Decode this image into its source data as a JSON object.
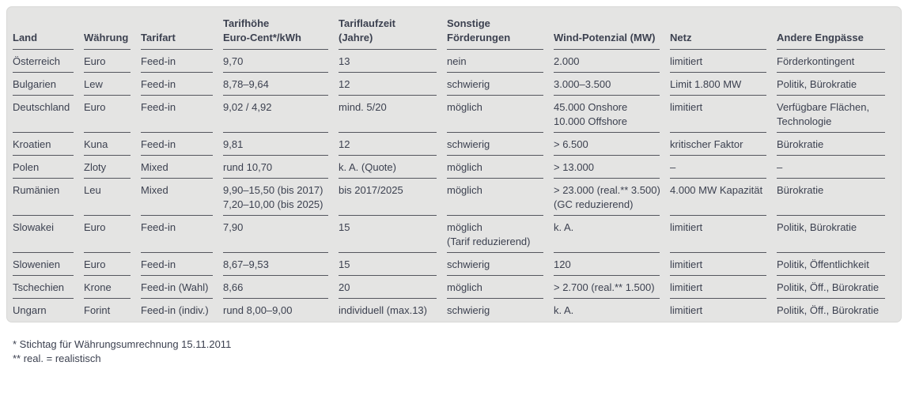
{
  "table": {
    "columns": [
      "Land",
      "Währung",
      "Tarifart",
      "Tarifhöhe\nEuro-Cent*/kWh",
      "Tariflaufzeit\n(Jahre)",
      "Sonstige\nFörderungen",
      "Wind-Potenzial (MW)",
      "Netz",
      "Andere Engpässe"
    ],
    "rows": [
      [
        "Österreich",
        "Euro",
        "Feed-in",
        "9,70",
        "13",
        "nein",
        "2.000",
        "limitiert",
        "Förderkontingent"
      ],
      [
        "Bulgarien",
        "Lew",
        "Feed-in",
        "8,78–9,64",
        "12",
        "schwierig",
        "3.000–3.500",
        "Limit 1.800 MW",
        "Politik, Bürokratie"
      ],
      [
        "Deutschland",
        "Euro",
        "Feed-in",
        "9,02 / 4,92",
        "mind. 5/20",
        "möglich",
        "45.000 Onshore\n10.000 Offshore",
        "limitiert",
        "Verfügbare Flächen,\nTechnologie"
      ],
      [
        "Kroatien",
        "Kuna",
        "Feed-in",
        "9,81",
        "12",
        "schwierig",
        "> 6.500",
        "kritischer Faktor",
        "Bürokratie"
      ],
      [
        "Polen",
        "Zloty",
        "Mixed",
        "rund 10,70",
        "k. A. (Quote)",
        "möglich",
        "> 13.000",
        "–",
        "–"
      ],
      [
        "Rumänien",
        "Leu",
        "Mixed",
        "9,90–15,50 (bis 2017)\n7,20–10,00 (bis 2025)",
        "bis 2017/2025",
        "möglich",
        "> 23.000 (real.** 3.500)\n(GC reduzierend)",
        "4.000 MW Kapazität",
        "Bürokratie"
      ],
      [
        "Slowakei",
        "Euro",
        "Feed-in",
        "7,90",
        "15",
        "möglich\n(Tarif reduzierend)",
        "k. A.",
        "limitiert",
        "Politik, Bürokratie"
      ],
      [
        "Slowenien",
        "Euro",
        "Feed-in",
        "8,67–9,53",
        "15",
        "schwierig",
        "120",
        "limitiert",
        "Politik, Öffentlichkeit"
      ],
      [
        "Tschechien",
        "Krone",
        "Feed-in (Wahl)",
        "8,66",
        "20",
        "möglich",
        "> 2.700 (real.** 1.500)",
        "limitiert",
        "Politik, Öff., Bürokratie"
      ],
      [
        "Ungarn",
        "Forint",
        "Feed-in (indiv.)",
        "rund 8,00–9,00",
        "individuell (max.13)",
        "schwierig",
        "k. A.",
        "limitiert",
        "Politik, Öff., Bürokratie"
      ]
    ]
  },
  "footnotes": [
    "* Stichtag für Währungsumrechnung 15.11.2011",
    "** real. = realistisch"
  ],
  "colors": {
    "card_background": "#e4e4e3",
    "text": "#3c4150",
    "rule_line": "#54565e"
  }
}
